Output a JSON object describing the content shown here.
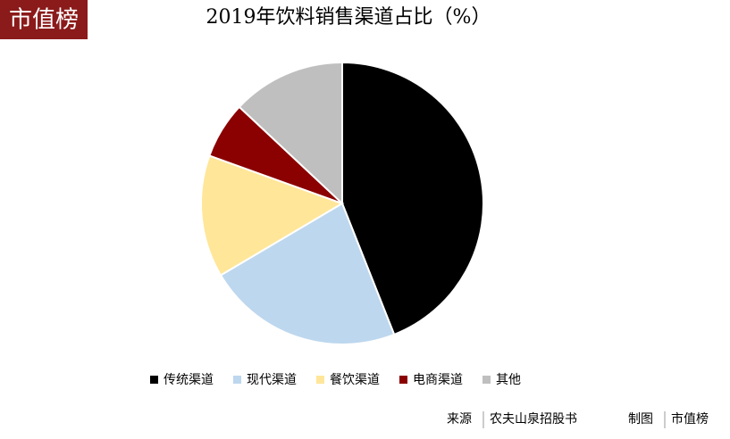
{
  "brand": "市值榜",
  "chart_data": {
    "type": "pie",
    "title": "2019年饮料销售渠道占比（%）",
    "categories": [
      "传统渠道",
      "现代渠道",
      "餐饮渠道",
      "电商渠道",
      "其他"
    ],
    "values": [
      44,
      22.5,
      14,
      6.5,
      13
    ],
    "colors": [
      "#000000",
      "#bdd7ee",
      "#ffe699",
      "#8b0000",
      "#bfbfbf"
    ],
    "legend": "bottom"
  },
  "footer": {
    "source_label": "来源",
    "source": "农夫山泉招股书",
    "made_label": "制图",
    "made_by": "市值榜"
  }
}
